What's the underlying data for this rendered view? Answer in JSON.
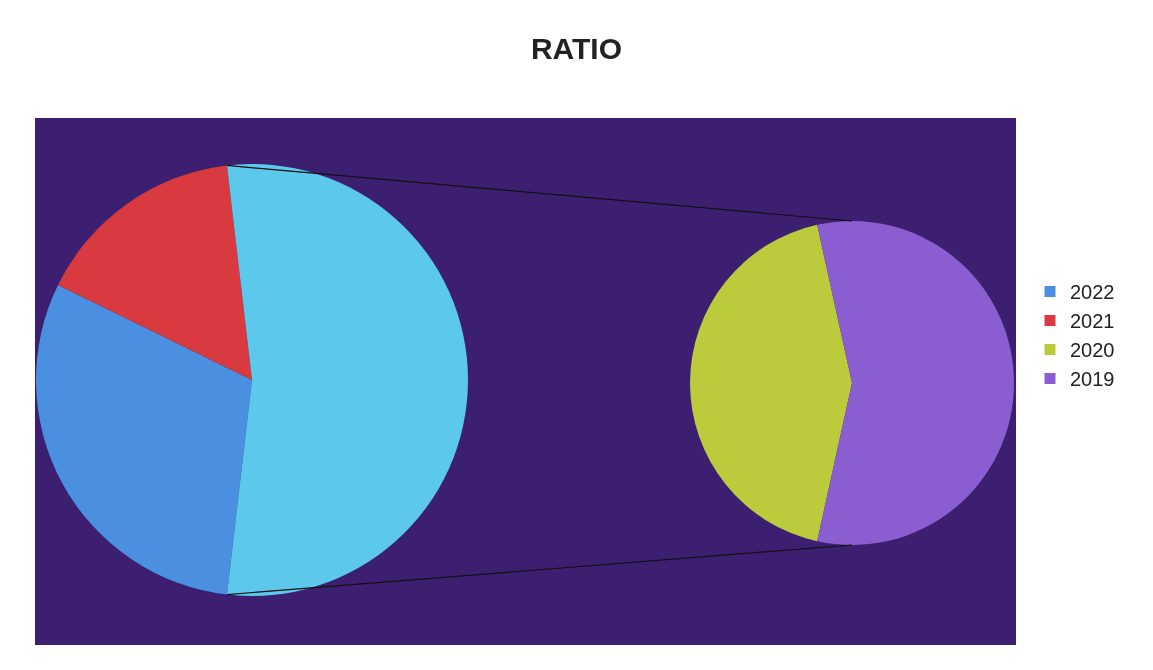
{
  "chart_data": [
    {
      "type": "pie",
      "title": "RATIO",
      "categories": [
        "2022",
        "2021",
        null
      ],
      "values": [
        30.4,
        15.9,
        53.7
      ],
      "colors": [
        "#4a8fe0",
        "#d83a3f",
        "#5cc8ec"
      ],
      "legend": "right"
    },
    {
      "type": "pie",
      "categories": [
        "2020",
        "2019"
      ],
      "values": [
        43.1,
        56.9
      ],
      "colors": [
        "#bccb3c",
        "#8a5ed0"
      ],
      "legend": "right"
    }
  ]
}
